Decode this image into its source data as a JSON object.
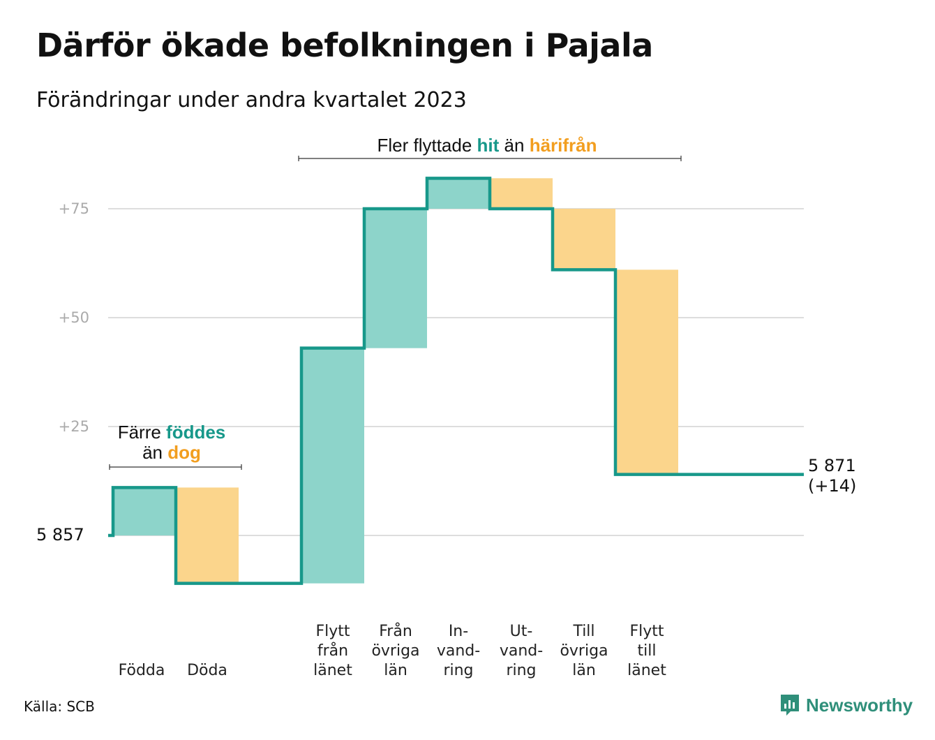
{
  "title": "Därför ökade befolkningen i Pajala",
  "subtitle": "Förändringar under andra kvartalet 2023",
  "source": "Källa: SCB",
  "brand": "Newsworthy",
  "colors": {
    "increase": "#8dd4ca",
    "decrease": "#fbd58c",
    "line": "#17988a",
    "teal_text": "#17988a",
    "orange_text": "#f29e1f"
  },
  "annotations": {
    "births": {
      "line1_a": "Färre ",
      "line1_b": "föddes",
      "line2_a": "än ",
      "line2_b": "dog"
    },
    "migration": {
      "a": "Fler flyttade ",
      "b": "hit",
      "c": " än ",
      "d": "härifrån"
    }
  },
  "chart_data": {
    "type": "waterfall",
    "start_value": 5857,
    "start_label": "5  857",
    "end_value": 5871,
    "end_label_line1": "5 871",
    "end_label_line2": "(+14)",
    "yticks": [
      {
        "value": 5857,
        "label": ""
      },
      {
        "value": 5882,
        "label": "+25"
      },
      {
        "value": 5907,
        "label": "+50"
      },
      {
        "value": 5932,
        "label": "+75"
      }
    ],
    "ylim": [
      5840,
      5945
    ],
    "steps": [
      {
        "label": [
          "Födda"
        ],
        "change": 11
      },
      {
        "label": [
          "Döda"
        ],
        "change": -22
      },
      {
        "label": [],
        "change": 0
      },
      {
        "label": [
          "Flytt",
          "från",
          "länet"
        ],
        "change": 54
      },
      {
        "label": [
          "Från",
          "övriga",
          "län"
        ],
        "change": 32
      },
      {
        "label": [
          "In-",
          "vand-",
          "ring"
        ],
        "change": 7
      },
      {
        "label": [
          "Ut-",
          "vand-",
          "ring"
        ],
        "change": -7
      },
      {
        "label": [
          "Till",
          "övriga",
          "län"
        ],
        "change": -14
      },
      {
        "label": [
          "Flytt",
          "till",
          "länet"
        ],
        "change": -47
      }
    ]
  }
}
